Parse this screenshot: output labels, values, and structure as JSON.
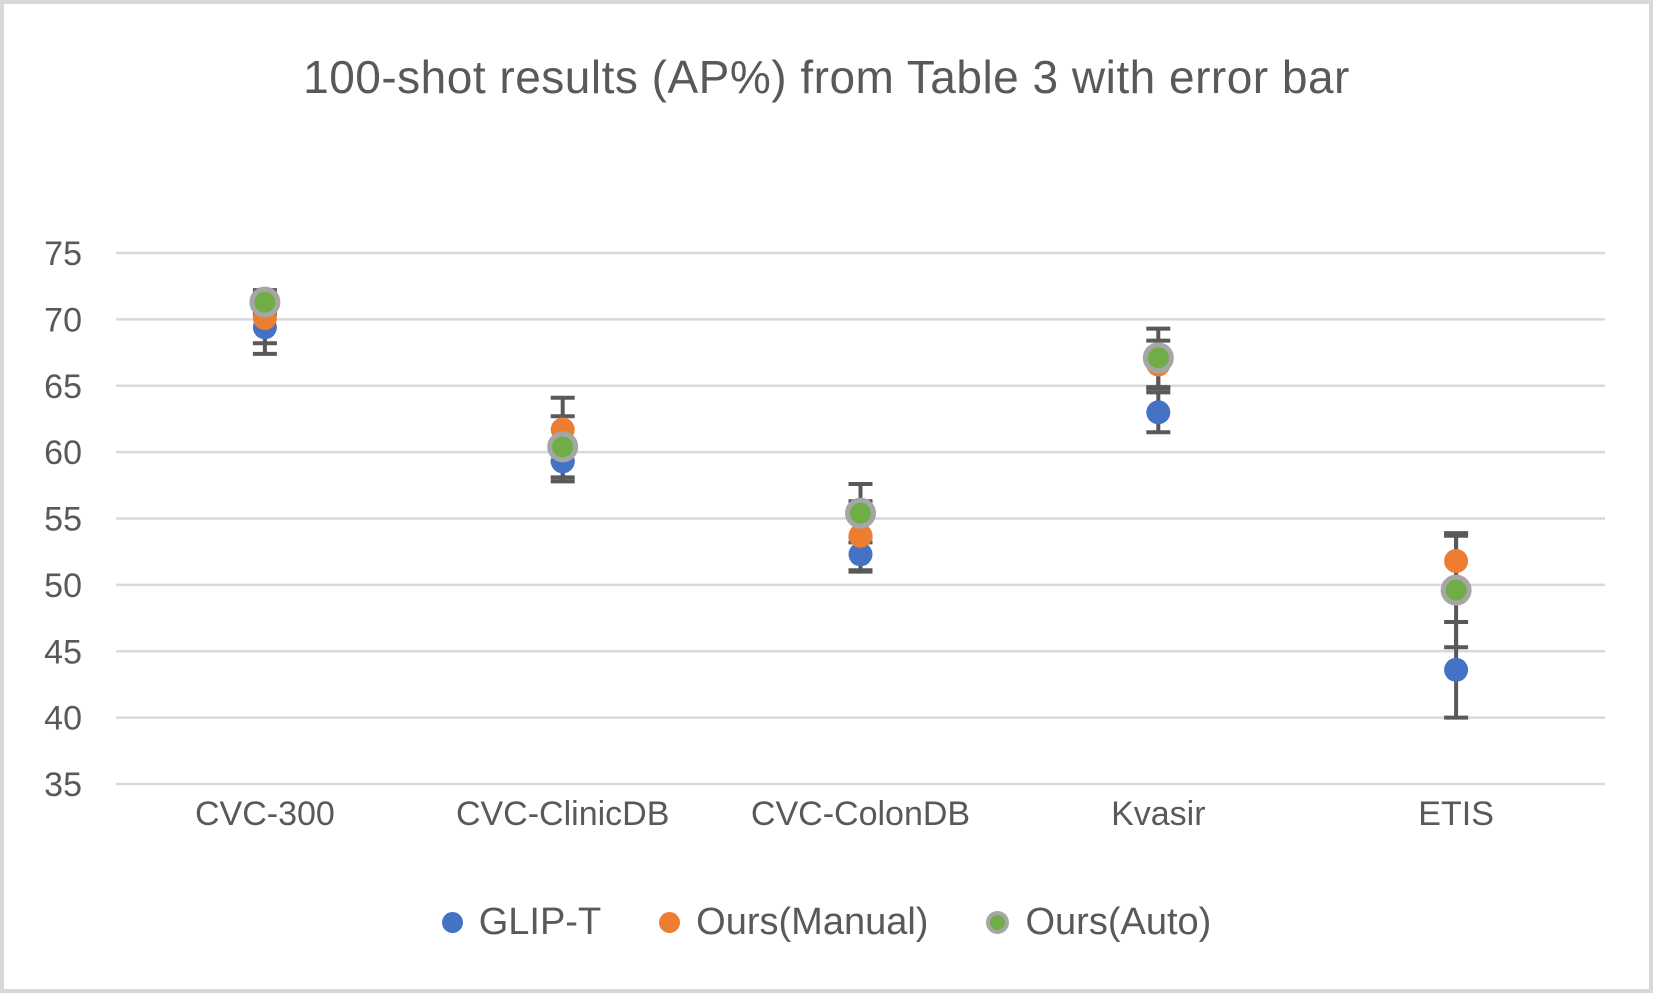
{
  "chart_data": {
    "type": "scatter",
    "title": "100-shot results (AP%) from Table 3 with error bar",
    "categories": [
      "CVC-300",
      "CVC-ClinicDB",
      "CVC-ColonDB",
      "Kvasir",
      "ETIS"
    ],
    "yticks": [
      35,
      40,
      45,
      50,
      55,
      60,
      65,
      70,
      75
    ],
    "ylim": [
      35,
      75
    ],
    "xlabel": "",
    "ylabel": "",
    "grid": "horizontal",
    "legend_position": "bottom",
    "error_bars": true,
    "series": [
      {
        "name": "GLIP-T",
        "color": "#4472C4",
        "values": [
          69.4,
          59.3,
          52.3,
          63.0,
          43.6
        ],
        "errors": [
          2.0,
          1.5,
          1.3,
          1.5,
          3.6
        ]
      },
      {
        "name": "Ours(Manual)",
        "color": "#ED7D31",
        "values": [
          70.1,
          61.7,
          53.7,
          66.6,
          51.8
        ],
        "errors": [
          1.9,
          2.4,
          2.6,
          1.8,
          1.9
        ]
      },
      {
        "name": "Ours(Auto)",
        "color": "#70AD47",
        "ring_color": "#A6A6A6",
        "values": [
          71.3,
          60.4,
          55.4,
          67.1,
          49.6
        ],
        "errors": [
          0.9,
          2.3,
          2.2,
          2.2,
          4.3
        ]
      }
    ],
    "styles": {
      "gridline_color": "#D9D9D9",
      "error_bar_color": "#595959",
      "text_color": "#595959",
      "background": "#FFFFFF",
      "frame_border_color": "#D8D8D8"
    }
  }
}
